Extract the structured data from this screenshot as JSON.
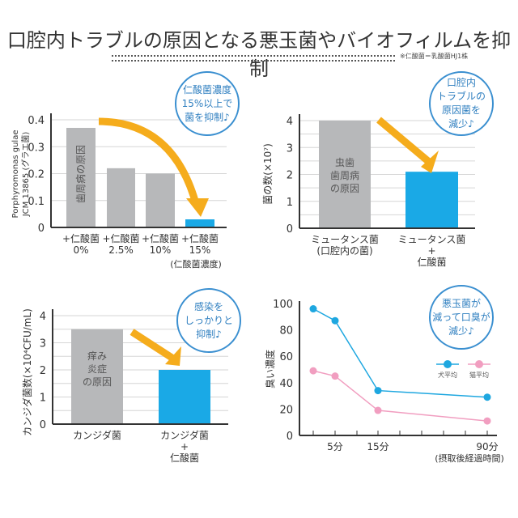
{
  "title": "口腔内トラブルの原因となる悪玉菌やバイオフィルムを抑制",
  "note": "※仁酸菌＝乳酸菌HJ1株",
  "colors": {
    "gray_bar": "#b7b8ba",
    "blue_bar": "#1aa9e6",
    "arrow": "#f5ac1c",
    "bubble": "#3a8fd0",
    "dog_line": "#1ea7e0",
    "cat_line": "#f19ec0"
  },
  "chart_data": [
    {
      "type": "bar",
      "ylabel": "Porphyromonas gulae JCM 13865 (グラエ菌)",
      "ylim": [
        0,
        0.4
      ],
      "yticks": [
        "0",
        "0.1",
        "0.2",
        "0.3",
        "0.4"
      ],
      "categories": [
        "+仁酸菌\n0%",
        "+仁酸菌\n2.5%",
        "+仁酸菌\n10%",
        "+仁酸菌\n15%"
      ],
      "values": [
        0.37,
        0.22,
        0.2,
        0.03
      ],
      "colors": [
        "gray",
        "gray",
        "gray",
        "blue"
      ],
      "bar_label": "歯周病の原因",
      "xlabel": "(仁酸菌濃度)",
      "bubble": "仁酸菌濃度\n15%以上で\n菌を抑制♪",
      "grid": true
    },
    {
      "type": "bar",
      "ylabel": "菌の数(×10⁷)",
      "ylim": [
        0,
        4
      ],
      "yticks": [
        "0",
        "1",
        "2",
        "3",
        "4"
      ],
      "categories": [
        "ミュータンス菌\n(口腔内の菌)",
        "ミュータンス菌\n+\n仁酸菌"
      ],
      "values": [
        4.0,
        2.1
      ],
      "colors": [
        "gray",
        "blue"
      ],
      "bar_label": "虫歯\n歯周病\nの原因",
      "bubble": "口腔内\nトラブルの\n原因菌を\n減少♪",
      "grid": true
    },
    {
      "type": "bar",
      "ylabel": "カンジダ菌数(×10⁴CFU/mL)",
      "ylim": [
        0,
        4
      ],
      "yticks": [
        "0",
        "1",
        "2",
        "3",
        "4"
      ],
      "categories": [
        "カンジダ菌",
        "カンジダ菌\n+\n仁酸菌"
      ],
      "values": [
        3.5,
        2.0
      ],
      "colors": [
        "gray",
        "blue"
      ],
      "bar_label": "痒み\n炎症\nの原因",
      "bubble": "感染を\nしっかりと\n抑制♪",
      "grid": true
    },
    {
      "type": "line",
      "ylabel": "臭い濃度",
      "ylim": [
        0,
        100
      ],
      "yticks": [
        "0",
        "20",
        "40",
        "60",
        "80",
        "100"
      ],
      "x": [
        "",
        "5分",
        "15分",
        "90分"
      ],
      "xlabel": "(摂取後経過時間)",
      "series": [
        {
          "name": "犬平均",
          "values": [
            96,
            87,
            34,
            29
          ],
          "color": "dog"
        },
        {
          "name": "猫平均",
          "values": [
            49,
            45,
            19,
            11
          ],
          "color": "cat"
        }
      ],
      "bubble": "悪玉菌が\n減って口臭が\n減少♪",
      "legend": "right"
    }
  ]
}
